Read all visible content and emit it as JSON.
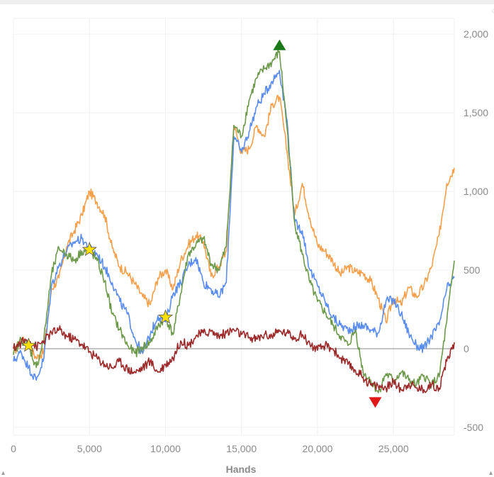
{
  "chart_data": {
    "type": "line",
    "title": "",
    "xlabel": "Hands",
    "ylabel": "",
    "xlim": [
      0,
      29000
    ],
    "ylim": [
      -550,
      2100
    ],
    "x_ticks": [
      0,
      5000,
      10000,
      15000,
      20000,
      25000
    ],
    "x_tick_labels": [
      "0",
      "5,000",
      "10,000",
      "15,000",
      "20,000",
      "25,000"
    ],
    "y_ticks": [
      -500,
      0,
      500,
      1000,
      1500,
      2000
    ],
    "y_tick_labels": [
      "-500",
      "0",
      "500",
      "1,000",
      "1,500",
      "2,000"
    ],
    "grid": true,
    "legend": "none",
    "series": [
      {
        "color": "#f7a04b",
        "x": [
          0,
          500,
          1000,
          1500,
          2000,
          2500,
          3000,
          3500,
          4000,
          4500,
          5000,
          5500,
          6000,
          6500,
          7000,
          7500,
          8000,
          8500,
          9000,
          9500,
          10000,
          10500,
          11000,
          11500,
          12000,
          12500,
          13000,
          13500,
          14000,
          14500,
          15000,
          15500,
          16000,
          16500,
          17000,
          17500,
          18000,
          18500,
          19000,
          19500,
          20000,
          20500,
          21000,
          21500,
          22000,
          22500,
          23000,
          23500,
          24000,
          24500,
          25000,
          25500,
          26000,
          26500,
          27000,
          27500,
          28000,
          28500,
          29000
        ],
        "y": [
          -30,
          60,
          20,
          -60,
          -20,
          380,
          450,
          650,
          750,
          850,
          1000,
          930,
          850,
          640,
          520,
          480,
          410,
          330,
          280,
          450,
          500,
          380,
          560,
          660,
          720,
          680,
          460,
          520,
          620,
          1420,
          1250,
          1270,
          1420,
          1350,
          1550,
          1600,
          1250,
          850,
          1050,
          830,
          660,
          620,
          560,
          470,
          520,
          490,
          480,
          430,
          320,
          170,
          320,
          280,
          390,
          330,
          400,
          520,
          720,
          1050,
          1150
        ]
      },
      {
        "color": "#5b8def",
        "x": [
          0,
          500,
          1000,
          1500,
          2000,
          2500,
          3000,
          3500,
          4000,
          4500,
          5000,
          5500,
          6000,
          6500,
          7000,
          7500,
          8000,
          8500,
          9000,
          9500,
          10000,
          10500,
          11000,
          11500,
          12000,
          12500,
          13000,
          13500,
          14000,
          14500,
          15000,
          15500,
          16000,
          16500,
          17000,
          17500,
          18000,
          18500,
          19000,
          19500,
          20000,
          20500,
          21000,
          21500,
          22000,
          22500,
          23000,
          23500,
          24000,
          24500,
          25000,
          25500,
          26000,
          26500,
          27000,
          27500,
          28000,
          28500,
          29000
        ],
        "y": [
          -80,
          -20,
          -120,
          -200,
          -60,
          400,
          530,
          620,
          680,
          700,
          640,
          600,
          520,
          420,
          300,
          220,
          60,
          -30,
          90,
          210,
          170,
          350,
          420,
          530,
          580,
          420,
          380,
          330,
          420,
          1350,
          1250,
          1380,
          1540,
          1620,
          1700,
          1770,
          1450,
          800,
          750,
          500,
          400,
          300,
          200,
          150,
          120,
          140,
          150,
          120,
          100,
          300,
          310,
          220,
          100,
          20,
          0,
          80,
          150,
          380,
          450
        ]
      },
      {
        "color": "#6c9a4a",
        "x": [
          0,
          500,
          1000,
          1500,
          2000,
          2500,
          3000,
          3500,
          4000,
          4500,
          5000,
          5500,
          6000,
          6500,
          7000,
          7500,
          8000,
          8500,
          9000,
          9500,
          10000,
          10500,
          11000,
          11500,
          12000,
          12500,
          13000,
          13500,
          14000,
          14500,
          15000,
          15500,
          16000,
          16500,
          17000,
          17500,
          18000,
          18500,
          19000,
          19500,
          20000,
          20500,
          21000,
          21500,
          22000,
          22500,
          23000,
          23500,
          24000,
          24500,
          25000,
          25500,
          26000,
          26500,
          27000,
          27500,
          28000,
          28500,
          29000
        ],
        "y": [
          -40,
          60,
          20,
          -120,
          60,
          470,
          640,
          600,
          560,
          620,
          630,
          560,
          430,
          220,
          120,
          20,
          -30,
          10,
          40,
          140,
          200,
          90,
          350,
          600,
          660,
          700,
          540,
          500,
          650,
          1420,
          1350,
          1580,
          1720,
          1780,
          1820,
          1890,
          1400,
          800,
          600,
          420,
          300,
          230,
          150,
          80,
          20,
          120,
          -150,
          -200,
          -280,
          -160,
          -200,
          -150,
          -200,
          -230,
          -170,
          -230,
          -180,
          170,
          560
        ]
      },
      {
        "color": "#9c2a2a",
        "x": [
          0,
          500,
          1000,
          1500,
          2000,
          2500,
          3000,
          3500,
          4000,
          4500,
          5000,
          5500,
          6000,
          6500,
          7000,
          7500,
          8000,
          8500,
          9000,
          9500,
          10000,
          10500,
          11000,
          11500,
          12000,
          12500,
          13000,
          13500,
          14000,
          14500,
          15000,
          15500,
          16000,
          16500,
          17000,
          17500,
          18000,
          18500,
          19000,
          19500,
          20000,
          20500,
          21000,
          21500,
          22000,
          22500,
          23000,
          23500,
          24000,
          24500,
          25000,
          25500,
          26000,
          26500,
          27000,
          27500,
          28000,
          28500,
          29000
        ],
        "y": [
          0,
          40,
          60,
          10,
          50,
          100,
          120,
          80,
          60,
          30,
          -20,
          -60,
          -100,
          -120,
          -80,
          -130,
          -150,
          -120,
          -80,
          -150,
          -100,
          -60,
          50,
          20,
          80,
          100,
          110,
          80,
          100,
          120,
          90,
          70,
          60,
          90,
          80,
          110,
          100,
          70,
          90,
          30,
          -10,
          20,
          0,
          -60,
          -100,
          -140,
          -180,
          -230,
          -240,
          -250,
          -210,
          -260,
          -220,
          -250,
          -260,
          -230,
          -250,
          -80,
          40
        ]
      }
    ],
    "zero_line": {
      "y": 0,
      "color": "#8a8a8a"
    },
    "markers": [
      {
        "type": "star",
        "x": 1000,
        "y": 20,
        "color": "#ffe000"
      },
      {
        "type": "star",
        "x": 5000,
        "y": 630,
        "color": "#ffe000"
      },
      {
        "type": "star",
        "x": 10000,
        "y": 200,
        "color": "#ffe000"
      },
      {
        "type": "triangle-up",
        "x": 17500,
        "y": 1930,
        "color": "#1a7a1a"
      },
      {
        "type": "triangle-down",
        "x": 23800,
        "y": -340,
        "color": "#e01818"
      }
    ]
  },
  "ui": {
    "corner_icon": "loading-glyph",
    "corner_glyph": "◌",
    "bottom_left_glyph": "▴",
    "bottom_right_glyph": "▴"
  }
}
